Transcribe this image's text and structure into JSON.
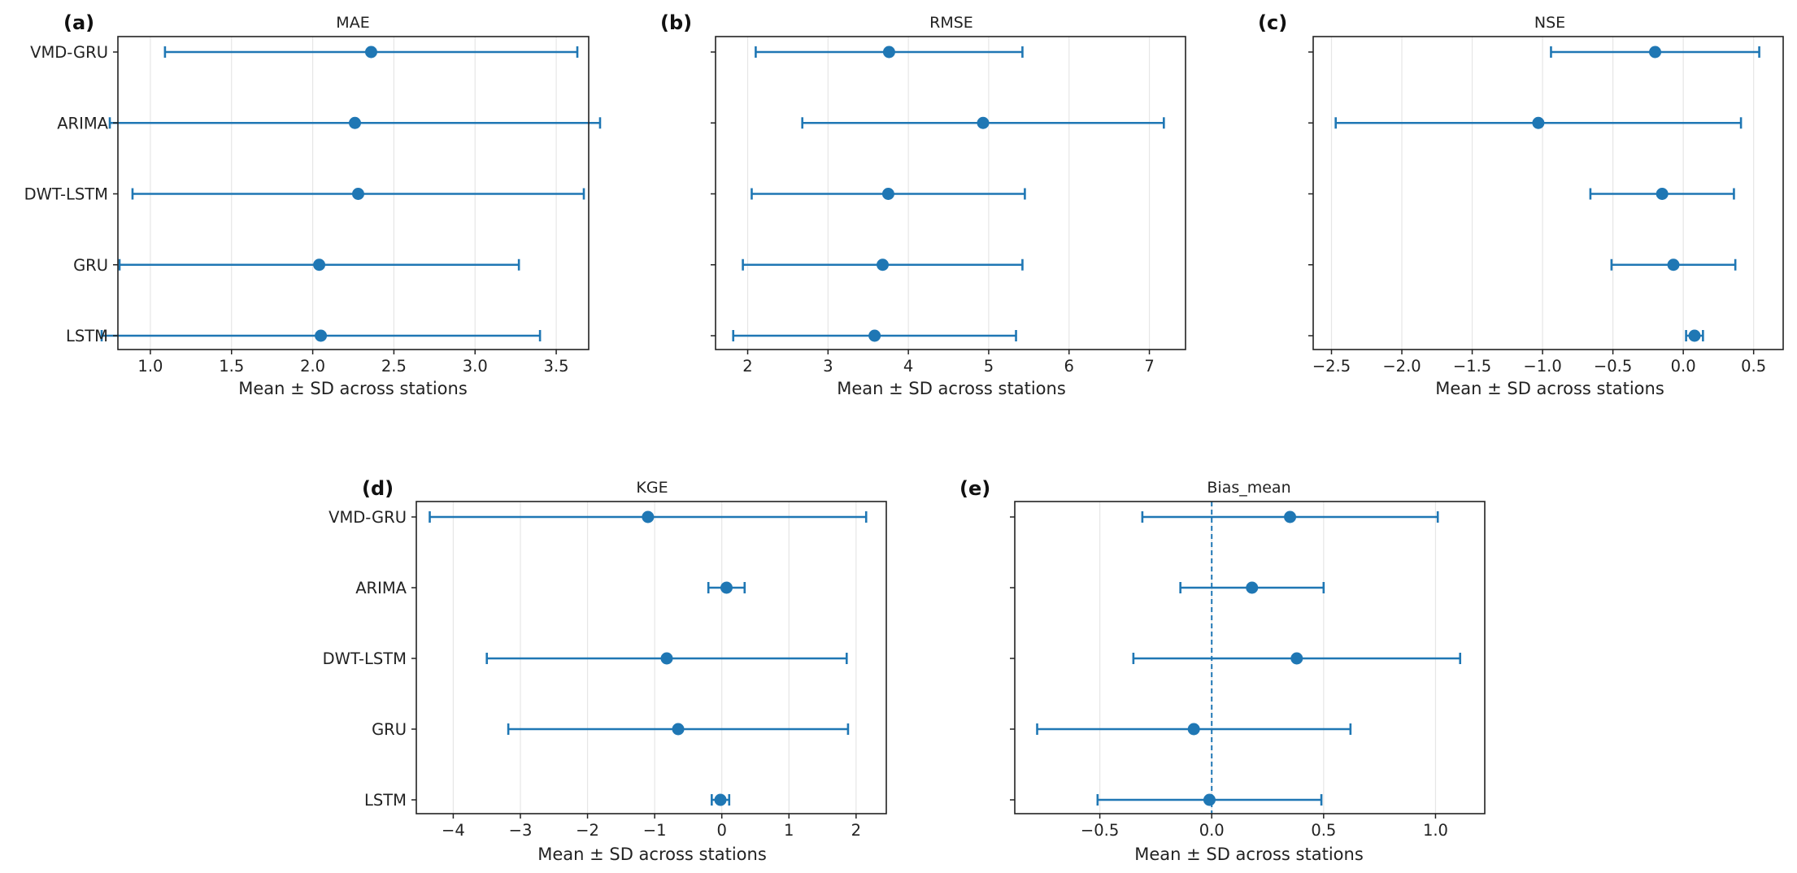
{
  "colors": {
    "marker": "#1f77b4",
    "grid": "#e6e6e6",
    "axis": "#222222"
  },
  "chart_data": [
    {
      "type": "scatter",
      "panel": "(a)",
      "title": "MAE",
      "xlabel": "Mean ± SD across stations",
      "xlim": [
        0.8,
        3.7
      ],
      "xticks": [
        1.0,
        1.5,
        2.0,
        2.5,
        3.0,
        3.5
      ],
      "xtick_labels": [
        "1.0",
        "1.5",
        "2.0",
        "2.5",
        "3.0",
        "3.5"
      ],
      "grid": true,
      "categories": [
        "VMD-GRU",
        "ARIMA",
        "DWT-LSTM",
        "GRU",
        "LSTM"
      ],
      "show_category_labels": true,
      "means": [
        2.36,
        2.26,
        2.28,
        2.04,
        2.05
      ],
      "sd": [
        1.27,
        1.51,
        1.39,
        1.23,
        1.35
      ]
    },
    {
      "type": "scatter",
      "panel": "(b)",
      "title": "RMSE",
      "xlabel": "Mean ± SD across stations",
      "xlim": [
        1.6,
        7.45
      ],
      "xticks": [
        2,
        3,
        4,
        5,
        6,
        7
      ],
      "xtick_labels": [
        "2",
        "3",
        "4",
        "5",
        "6",
        "7"
      ],
      "grid": true,
      "categories": [
        "VMD-GRU",
        "ARIMA",
        "DWT-LSTM",
        "GRU",
        "LSTM"
      ],
      "show_category_labels": false,
      "means": [
        3.76,
        4.93,
        3.75,
        3.68,
        3.58
      ],
      "sd": [
        1.66,
        2.25,
        1.7,
        1.74,
        1.76
      ]
    },
    {
      "type": "scatter",
      "panel": "(c)",
      "title": "NSE",
      "xlabel": "Mean ± SD across stations",
      "xlim": [
        -2.63,
        0.71
      ],
      "xticks": [
        -2.5,
        -2.0,
        -1.5,
        -1.0,
        -0.5,
        0.0,
        0.5
      ],
      "xtick_labels": [
        "−2.5",
        "−2.0",
        "−1.5",
        "−1.0",
        "−0.5",
        "0.0",
        "0.5"
      ],
      "grid": true,
      "categories": [
        "VMD-GRU",
        "ARIMA",
        "DWT-LSTM",
        "GRU",
        "LSTM"
      ],
      "show_category_labels": false,
      "means": [
        -0.2,
        -1.03,
        -0.15,
        -0.07,
        0.08
      ],
      "sd": [
        0.74,
        1.44,
        0.51,
        0.44,
        0.06
      ]
    },
    {
      "type": "scatter",
      "panel": "(d)",
      "title": "KGE",
      "xlabel": "Mean ± SD across stations",
      "xlim": [
        -4.55,
        2.45
      ],
      "xticks": [
        -4,
        -3,
        -2,
        -1,
        0,
        1,
        2
      ],
      "xtick_labels": [
        "−4",
        "−3",
        "−2",
        "−1",
        "0",
        "1",
        "2"
      ],
      "grid": true,
      "categories": [
        "VMD-GRU",
        "ARIMA",
        "DWT-LSTM",
        "GRU",
        "LSTM"
      ],
      "show_category_labels": true,
      "means": [
        -1.1,
        0.07,
        -0.82,
        -0.65,
        -0.02
      ],
      "sd": [
        3.25,
        0.27,
        2.68,
        2.53,
        0.13
      ]
    },
    {
      "type": "scatter",
      "panel": "(e)",
      "title": "Bias_mean",
      "xlabel": "Mean ± SD across stations",
      "xlim": [
        -0.88,
        1.22
      ],
      "xticks": [
        -0.5,
        0.0,
        0.5,
        1.0
      ],
      "xtick_labels": [
        "−0.5",
        "0.0",
        "0.5",
        "1.0"
      ],
      "grid": true,
      "categories": [
        "VMD-GRU",
        "ARIMA",
        "DWT-LSTM",
        "GRU",
        "LSTM"
      ],
      "show_category_labels": false,
      "means": [
        0.35,
        0.18,
        0.38,
        -0.08,
        -0.01
      ],
      "sd": [
        0.66,
        0.32,
        0.73,
        0.7,
        0.5
      ],
      "reference_line_x": 0
    }
  ]
}
